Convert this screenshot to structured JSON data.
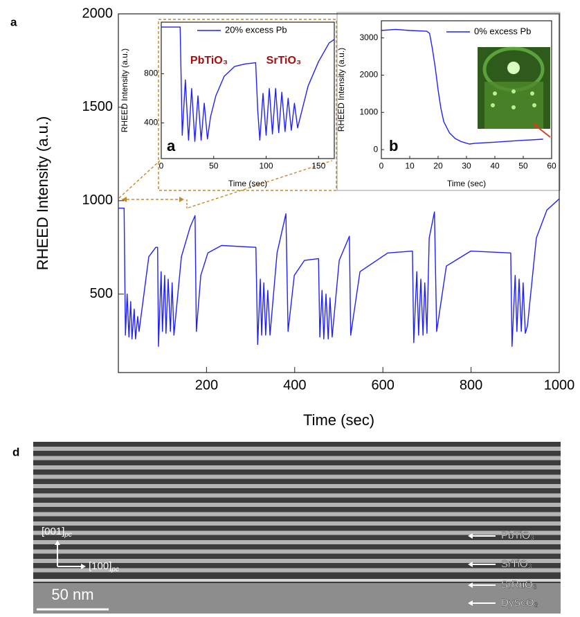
{
  "panel_labels": [
    "a",
    "d"
  ],
  "chart_data": [
    {
      "type": "line",
      "xlabel": "Time (sec)",
      "ylabel": "RHEED Intensity (a.u.)",
      "xlim": [
        0,
        1000
      ],
      "ylim": [
        80,
        2000
      ],
      "xticks": [
        200,
        400,
        600,
        800,
        1000
      ],
      "yticks": [
        500,
        1000,
        1500,
        2000
      ],
      "x": [
        0,
        13,
        16,
        20,
        24,
        28,
        31,
        36,
        39,
        44,
        47,
        69,
        85,
        89,
        91,
        97,
        100,
        105,
        108,
        113,
        118,
        122,
        126,
        143,
        163,
        174,
        177,
        187,
        203,
        234,
        312,
        316,
        322,
        325,
        330,
        334,
        339,
        344,
        360,
        380,
        385,
        399,
        422,
        454,
        457,
        462,
        466,
        471,
        476,
        480,
        485,
        501,
        524,
        527,
        548,
        611,
        667,
        670,
        677,
        681,
        686,
        691,
        695,
        700,
        705,
        717,
        722,
        744,
        799,
        890,
        893,
        900,
        904,
        909,
        914,
        918,
        923,
        928,
        948,
        972,
        1000
      ],
      "series": [
        {
          "color": "#1f1fff",
          "values": [
            960,
            960,
            280,
            500,
            270,
            460,
            260,
            420,
            260,
            380,
            300,
            700,
            750,
            750,
            220,
            620,
            300,
            600,
            290,
            580,
            300,
            560,
            280,
            700,
            860,
            920,
            300,
            600,
            720,
            760,
            750,
            230,
            580,
            280,
            560,
            280,
            520,
            280,
            720,
            930,
            300,
            600,
            680,
            690,
            270,
            520,
            260,
            500,
            260,
            480,
            270,
            680,
            810,
            280,
            620,
            720,
            730,
            240,
            620,
            280,
            580,
            280,
            560,
            290,
            800,
            940,
            300,
            650,
            730,
            720,
            220,
            600,
            300,
            580,
            300,
            560,
            290,
            330,
            800,
            950,
            1010
          ]
        }
      ]
    },
    {
      "type": "line",
      "xlabel": "Time (sec)",
      "ylabel": "RHEED Intensity (a.u.)",
      "panel_label": "a",
      "xlim": [
        0,
        165
      ],
      "ylim": [
        110,
        1220
      ],
      "xticks": [
        0,
        50,
        100,
        150
      ],
      "yticks": [
        400,
        800
      ],
      "annotations": [
        "PbTiO₃",
        "SrTiO₃"
      ],
      "annotation_color": "#a01010",
      "x": [
        0,
        18,
        20,
        23,
        26,
        29,
        32,
        35,
        38,
        41,
        44,
        47,
        52,
        60,
        70,
        80,
        90,
        92,
        94,
        97,
        100,
        103,
        106,
        109,
        112,
        115,
        118,
        121,
        124,
        127,
        130,
        140,
        150,
        160,
        165
      ],
      "series": [
        {
          "name": "20% excess Pb",
          "color": "#1f1fff",
          "values": [
            1180,
            1180,
            300,
            750,
            260,
            680,
            250,
            620,
            260,
            560,
            270,
            450,
            620,
            780,
            860,
            880,
            890,
            500,
            260,
            640,
            300,
            680,
            310,
            680,
            320,
            650,
            330,
            600,
            340,
            560,
            360,
            700,
            900,
            1050,
            1080
          ]
        }
      ]
    },
    {
      "type": "line",
      "xlabel": "Time (sec)",
      "ylabel": "RHEED Intensity (a.u.)",
      "panel_label": "b",
      "xlim": [
        0,
        60
      ],
      "ylim": [
        -240,
        3460
      ],
      "xticks": [
        0,
        10,
        20,
        30,
        40,
        50,
        60
      ],
      "yticks": [
        0,
        1000,
        2000,
        3000
      ],
      "x": [
        0,
        5,
        10,
        16,
        17,
        18,
        19,
        20,
        21,
        22,
        24,
        26,
        28,
        31,
        33,
        40,
        50,
        57
      ],
      "series": [
        {
          "name": "0% excess Pb",
          "color": "#1f1fff",
          "values": [
            3200,
            3230,
            3200,
            3180,
            3120,
            2700,
            2200,
            1600,
            1100,
            750,
            450,
            300,
            220,
            150,
            170,
            200,
            250,
            280
          ]
        }
      ]
    }
  ],
  "tem": {
    "axes": [
      {
        "label": "[001]",
        "sub": "pc"
      },
      {
        "label": "[100]",
        "sub": "pc"
      }
    ],
    "scale_bar": "50 nm",
    "layers": [
      "PbTiO₃",
      "SrTiO₃",
      "SrRuO₃",
      "DyScO₃"
    ]
  }
}
